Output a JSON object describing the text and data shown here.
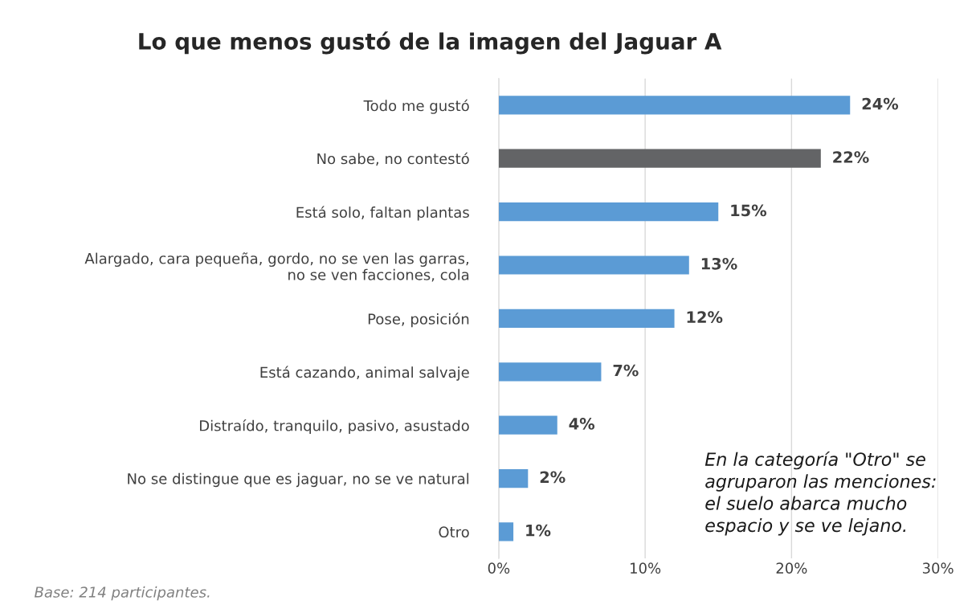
{
  "chart_data": {
    "type": "bar",
    "orientation": "horizontal",
    "title": "Lo que menos gustó de la imagen del Jaguar A",
    "categories": [
      "Todo me gustó",
      "No sabe, no contestó",
      "Está solo, faltan plantas",
      "Alargado, cara pequeña, gordo, no se ven las garras,\nno se ven facciones, cola",
      "Pose, posición",
      "Está cazando, animal salvaje",
      "Distraído, tranquilo, pasivo, asustado",
      "No se distingue que es jaguar, no se ve natural",
      "Otro"
    ],
    "values": [
      24,
      22,
      15,
      13,
      12,
      7,
      4,
      2,
      1
    ],
    "value_labels": [
      "24%",
      "22%",
      "15%",
      "13%",
      "12%",
      "7%",
      "4%",
      "2%",
      "1%"
    ],
    "colors": [
      "#5b9bd5",
      "#636466",
      "#5b9bd5",
      "#5b9bd5",
      "#5b9bd5",
      "#5b9bd5",
      "#5b9bd5",
      "#5b9bd5",
      "#5b9bd5"
    ],
    "xlim": [
      0,
      30
    ],
    "xticks": [
      {
        "value": 0,
        "label": "0%"
      },
      {
        "value": 10,
        "label": "10%"
      },
      {
        "value": 20,
        "label": "20%"
      },
      {
        "value": 30,
        "label": "30%"
      }
    ],
    "grid": "x",
    "annotations": [
      "En la categoría \"Otro\" se\nagruparon las menciones:\nel suelo abarca mucho\nespacio y se ve lejano.",
      "Base: 214 participantes."
    ]
  }
}
